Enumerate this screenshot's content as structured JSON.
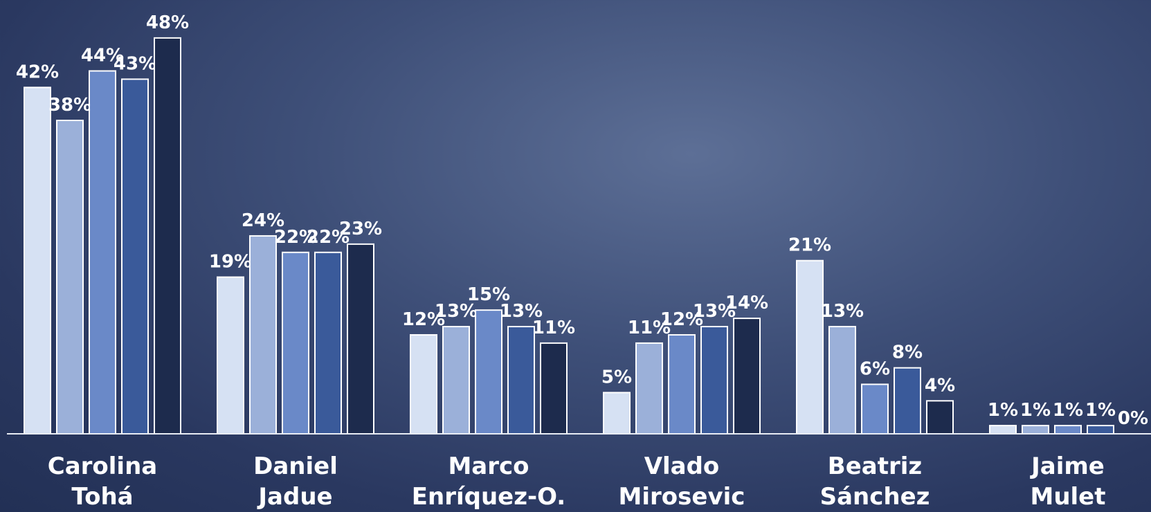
{
  "chart_data": {
    "type": "bar",
    "categories": [
      "Carolina Tohá",
      "Daniel Jadue",
      "Marco Enríquez-O.",
      "Vlado Mirosevic",
      "Beatriz Sánchez",
      "Jaime Mulet"
    ],
    "series": [
      {
        "color": "#d6e1f3",
        "values": [
          42,
          19,
          12,
          5,
          21,
          1
        ],
        "value_labels": [
          "42%",
          "19%",
          "12%",
          "5%",
          "21%",
          "1%"
        ]
      },
      {
        "color": "#9bb0d9",
        "values": [
          38,
          24,
          13,
          11,
          13,
          1
        ],
        "value_labels": [
          "38%",
          "24%",
          "13%",
          "11%",
          "13%",
          "1%"
        ]
      },
      {
        "color": "#6a89c8",
        "values": [
          44,
          22,
          15,
          12,
          6,
          1
        ],
        "value_labels": [
          "44%",
          "22%",
          "15%",
          "12%",
          "6%",
          "1%"
        ]
      },
      {
        "color": "#3a5a9a",
        "values": [
          43,
          22,
          13,
          13,
          8,
          1
        ],
        "value_labels": [
          "43%",
          "22%",
          "13%",
          "13%",
          "8%",
          "1%"
        ]
      },
      {
        "color": "#1d2b4d",
        "values": [
          48,
          23,
          11,
          14,
          4,
          0
        ],
        "value_labels": [
          "48%",
          "23%",
          "11%",
          "14%",
          "4%",
          "0%"
        ]
      }
    ],
    "ylim": [
      0,
      50
    ]
  }
}
